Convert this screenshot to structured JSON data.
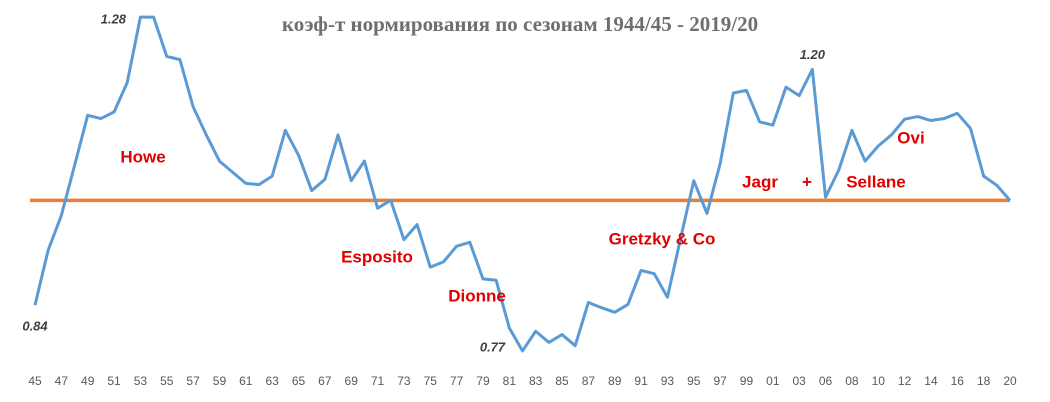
{
  "chart_data": {
    "type": "line",
    "title": "коэф-т нормирования по сезонам 1944/45 - 2019/20",
    "categories": [
      "45",
      null,
      "47",
      null,
      "49",
      null,
      "51",
      null,
      "53",
      null,
      "55",
      null,
      "57",
      null,
      "59",
      null,
      "61",
      null,
      "63",
      null,
      "65",
      null,
      "67",
      null,
      "69",
      null,
      "71",
      null,
      "73",
      null,
      "75",
      null,
      "77",
      null,
      "79",
      null,
      "81",
      null,
      "83",
      null,
      "85",
      null,
      "87",
      null,
      "89",
      null,
      "91",
      null,
      "93",
      null,
      "95",
      null,
      "97",
      null,
      "99",
      null,
      "01",
      null,
      "03",
      null,
      "06",
      null,
      "08",
      null,
      "10",
      null,
      "12",
      null,
      "14",
      null,
      "16",
      null,
      "18",
      null,
      "20"
    ],
    "series": [
      {
        "color": "#5b9bd5",
        "values": [
          0.84,
          0.924,
          0.977,
          1.053,
          1.13,
          1.125,
          1.135,
          1.18,
          1.28,
          1.28,
          1.22,
          1.215,
          1.143,
          1.1,
          1.06,
          1.043,
          1.026,
          1.024,
          1.037,
          1.107,
          1.069,
          1.015,
          1.032,
          1.1,
          1.03,
          1.06,
          0.988,
          1.0,
          0.94,
          0.963,
          0.898,
          0.906,
          0.93,
          0.936,
          0.88,
          0.878,
          0.805,
          0.77,
          0.8,
          0.783,
          0.795,
          0.778,
          0.844,
          0.836,
          0.829,
          0.841,
          0.893,
          0.888,
          0.852,
          0.942,
          1.03,
          0.98,
          1.056,
          1.164,
          1.168,
          1.12,
          1.115,
          1.173,
          1.16,
          1.2,
          1.005,
          1.046,
          1.107,
          1.06,
          1.083,
          1.1,
          1.124,
          1.128,
          1.122,
          1.125,
          1.133,
          1.11,
          1.037,
          1.023,
          1.0
        ],
        "value_labels": [
          "0.84",
          null,
          null,
          null,
          null,
          null,
          null,
          null,
          "1.28",
          null,
          null,
          null,
          null,
          null,
          null,
          null,
          null,
          null,
          null,
          null,
          null,
          null,
          null,
          null,
          null,
          null,
          null,
          null,
          null,
          null,
          null,
          null,
          null,
          null,
          null,
          null,
          null,
          "0.77",
          null,
          null,
          null,
          null,
          null,
          null,
          null,
          null,
          null,
          null,
          null,
          null,
          null,
          null,
          null,
          null,
          null,
          null,
          null,
          null,
          null,
          "1.20",
          null,
          null,
          null,
          null,
          null,
          null,
          null,
          null,
          null,
          null,
          null,
          null,
          null,
          null,
          null
        ]
      }
    ],
    "reference_line": {
      "value": 1,
      "color": "#ed7d31"
    },
    "ylim": [
      0.75,
      1.3
    ],
    "annotations": [
      "Howe",
      "Esposito",
      "Dionne",
      "Gretzky & Co",
      "Jagr",
      "+",
      "Sellane",
      "Ovi"
    ]
  }
}
